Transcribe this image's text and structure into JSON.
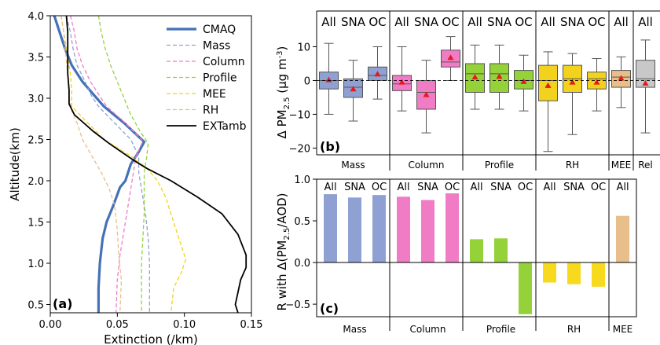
{
  "colors": {
    "CMAQ": "#4472b8",
    "Mass": "#8ea1d2",
    "Column": "#f07cc6",
    "Profile": "#95d23a",
    "MEE": "#f2d21c",
    "RH": "#e8be8a",
    "EXTamb": "#000000",
    "box_Mass": "#8ea1d2",
    "box_Column": "#f07cc6",
    "box_Profile": "#95d23a",
    "box_RH": "#f2d21c",
    "box_MEE": "#e8be8a",
    "box_Rel": "#c8c8c8",
    "bar_Mass": "#8ea1d2",
    "bar_Column": "#f07cc6",
    "bar_Profile": "#95d23a",
    "bar_RH": "#f7d91e",
    "bar_MEE": "#e8be8a",
    "mean_marker": "#e8191a"
  },
  "chart_data": [
    {
      "id": "a",
      "type": "line",
      "panel_label": "(a)",
      "xlabel": "Extinction (/km)",
      "ylabel": "Altitude(km)",
      "xlim": [
        0.0,
        0.15
      ],
      "ylim": [
        0.4,
        4.0
      ],
      "xticks": [
        "0.00",
        "0.05",
        "0.10",
        "0.15"
      ],
      "yticks": [
        "0.5",
        "1.0",
        "1.5",
        "2.0",
        "2.5",
        "3.0",
        "3.5",
        "4.0"
      ],
      "legend_position": "top-right",
      "series": [
        {
          "name": "CMAQ",
          "style": "solid-thick",
          "points": [
            [
              0.003,
              4.0
            ],
            [
              0.007,
              3.8
            ],
            [
              0.011,
              3.6
            ],
            [
              0.016,
              3.4
            ],
            [
              0.024,
              3.2
            ],
            [
              0.032,
              3.05
            ],
            [
              0.04,
              2.9
            ],
            [
              0.055,
              2.7
            ],
            [
              0.07,
              2.47
            ],
            [
              0.066,
              2.35
            ],
            [
              0.06,
              2.2
            ],
            [
              0.056,
              2.0
            ],
            [
              0.052,
              1.92
            ],
            [
              0.047,
              1.7
            ],
            [
              0.042,
              1.5
            ],
            [
              0.039,
              1.3
            ],
            [
              0.037,
              1.0
            ],
            [
              0.036,
              0.7
            ],
            [
              0.036,
              0.4
            ]
          ]
        },
        {
          "name": "Mass",
          "style": "dashed",
          "points": [
            [
              0.012,
              4.0
            ],
            [
              0.015,
              3.8
            ],
            [
              0.017,
              3.6
            ],
            [
              0.02,
              3.4
            ],
            [
              0.026,
              3.2
            ],
            [
              0.03,
              3.05
            ],
            [
              0.036,
              2.9
            ],
            [
              0.048,
              2.7
            ],
            [
              0.06,
              2.5
            ],
            [
              0.066,
              2.3
            ],
            [
              0.066,
              2.1
            ],
            [
              0.068,
              1.9
            ],
            [
              0.071,
              1.6
            ],
            [
              0.073,
              1.3
            ],
            [
              0.074,
              1.0
            ],
            [
              0.074,
              0.7
            ],
            [
              0.074,
              0.4
            ]
          ]
        },
        {
          "name": "Column",
          "style": "dashed",
          "points": [
            [
              0.015,
              4.0
            ],
            [
              0.018,
              3.8
            ],
            [
              0.02,
              3.6
            ],
            [
              0.024,
              3.4
            ],
            [
              0.03,
              3.2
            ],
            [
              0.036,
              3.05
            ],
            [
              0.042,
              2.9
            ],
            [
              0.056,
              2.7
            ],
            [
              0.069,
              2.48
            ],
            [
              0.064,
              2.3
            ],
            [
              0.062,
              2.1
            ],
            [
              0.06,
              1.9
            ],
            [
              0.058,
              1.7
            ],
            [
              0.055,
              1.4
            ],
            [
              0.052,
              1.1
            ],
            [
              0.05,
              0.8
            ],
            [
              0.049,
              0.4
            ]
          ]
        },
        {
          "name": "Profile",
          "style": "dashed",
          "points": [
            [
              0.036,
              4.0
            ],
            [
              0.038,
              3.8
            ],
            [
              0.041,
              3.6
            ],
            [
              0.045,
              3.4
            ],
            [
              0.05,
              3.2
            ],
            [
              0.055,
              3.0
            ],
            [
              0.06,
              2.8
            ],
            [
              0.067,
              2.6
            ],
            [
              0.073,
              2.45
            ],
            [
              0.072,
              2.3
            ],
            [
              0.07,
              2.1
            ],
            [
              0.07,
              1.9
            ],
            [
              0.07,
              1.6
            ],
            [
              0.069,
              1.3
            ],
            [
              0.068,
              1.0
            ],
            [
              0.068,
              0.7
            ],
            [
              0.068,
              0.4
            ]
          ]
        },
        {
          "name": "MEE",
          "style": "dashed",
          "points": [
            [
              0.008,
              4.0
            ],
            [
              0.01,
              3.8
            ],
            [
              0.012,
              3.6
            ],
            [
              0.015,
              3.3
            ],
            [
              0.016,
              3.1
            ],
            [
              0.016,
              2.9
            ],
            [
              0.028,
              2.7
            ],
            [
              0.04,
              2.5
            ],
            [
              0.06,
              2.3
            ],
            [
              0.072,
              2.15
            ],
            [
              0.08,
              2.0
            ],
            [
              0.086,
              1.8
            ],
            [
              0.09,
              1.6
            ],
            [
              0.096,
              1.3
            ],
            [
              0.101,
              1.05
            ],
            [
              0.098,
              0.9
            ],
            [
              0.092,
              0.7
            ],
            [
              0.09,
              0.4
            ]
          ]
        },
        {
          "name": "RH",
          "style": "dashed",
          "points": [
            [
              0.008,
              4.0
            ],
            [
              0.01,
              3.8
            ],
            [
              0.011,
              3.6
            ],
            [
              0.013,
              3.3
            ],
            [
              0.014,
              3.0
            ],
            [
              0.016,
              2.85
            ],
            [
              0.02,
              2.7
            ],
            [
              0.024,
              2.5
            ],
            [
              0.031,
              2.3
            ],
            [
              0.038,
              2.1
            ],
            [
              0.044,
              1.9
            ],
            [
              0.048,
              1.7
            ],
            [
              0.05,
              1.4
            ],
            [
              0.051,
              1.1
            ],
            [
              0.053,
              0.8
            ],
            [
              0.052,
              0.4
            ]
          ]
        },
        {
          "name": "EXTamb",
          "style": "solid",
          "points": [
            [
              0.012,
              4.0
            ],
            [
              0.013,
              3.8
            ],
            [
              0.013,
              3.6
            ],
            [
              0.013,
              3.3
            ],
            [
              0.014,
              3.1
            ],
            [
              0.014,
              2.93
            ],
            [
              0.018,
              2.8
            ],
            [
              0.032,
              2.6
            ],
            [
              0.044,
              2.45
            ],
            [
              0.062,
              2.25
            ],
            [
              0.072,
              2.15
            ],
            [
              0.09,
              2.0
            ],
            [
              0.11,
              1.8
            ],
            [
              0.128,
              1.6
            ],
            [
              0.14,
              1.35
            ],
            [
              0.146,
              1.1
            ],
            [
              0.146,
              0.95
            ],
            [
              0.142,
              0.8
            ],
            [
              0.14,
              0.65
            ],
            [
              0.138,
              0.5
            ],
            [
              0.14,
              0.4
            ]
          ]
        }
      ]
    },
    {
      "id": "b",
      "type": "box",
      "panel_label": "(b)",
      "ylabel_main": "Δ PM",
      "ylabel_sub": "2.5",
      "ylabel_tail": " (μg m",
      "ylabel_sup": "-3",
      "ylabel_end": ")",
      "ylim": [
        -22,
        15
      ],
      "yticks": [
        -20,
        -10,
        0,
        10
      ],
      "groups": [
        "Mass",
        "Column",
        "Profile",
        "RH",
        "MEE",
        "Rel"
      ],
      "boxes": [
        {
          "group": "Mass",
          "label": "All",
          "q1": -2.5,
          "median": 0.0,
          "q3": 2.5,
          "wlo": -10,
          "whi": 11,
          "mean": 0.2
        },
        {
          "group": "Mass",
          "label": "SNA",
          "q1": -5,
          "median": -2,
          "q3": 0.5,
          "wlo": -12,
          "whi": 6,
          "mean": -2.5
        },
        {
          "group": "Mass",
          "label": "OC",
          "q1": 0,
          "median": 1.5,
          "q3": 4,
          "wlo": -5.5,
          "whi": 10,
          "mean": 1.9
        },
        {
          "group": "Column",
          "label": "All",
          "q1": -3,
          "median": -1,
          "q3": 1.5,
          "wlo": -9,
          "whi": 10,
          "mean": -0.5
        },
        {
          "group": "Column",
          "label": "SNA",
          "q1": -8.5,
          "median": -3.5,
          "q3": 0,
          "wlo": -15.5,
          "whi": 6,
          "mean": -4.2
        },
        {
          "group": "Column",
          "label": "OC",
          "q1": 4,
          "median": 5.5,
          "q3": 9,
          "wlo": 0,
          "whi": 13,
          "mean": 6.8
        },
        {
          "group": "Profile",
          "label": "All",
          "q1": -3.5,
          "median": 2,
          "q3": 5,
          "wlo": -8.5,
          "whi": 10.5,
          "mean": 1.0
        },
        {
          "group": "Profile",
          "label": "SNA",
          "q1": -3.5,
          "median": 2,
          "q3": 5,
          "wlo": -8.5,
          "whi": 10.5,
          "mean": 1.2
        },
        {
          "group": "Profile",
          "label": "OC",
          "q1": -2.5,
          "median": 0,
          "q3": 3,
          "wlo": -9,
          "whi": 7.5,
          "mean": -0.3
        },
        {
          "group": "RH",
          "label": "All",
          "q1": -6,
          "median": 0,
          "q3": 4.5,
          "wlo": -21,
          "whi": 8.5,
          "mean": -1.5
        },
        {
          "group": "RH",
          "label": "SNA",
          "q1": -3.5,
          "median": 0.5,
          "q3": 4.5,
          "wlo": -16,
          "whi": 8,
          "mean": -0.5
        },
        {
          "group": "RH",
          "label": "OC",
          "q1": -2.5,
          "median": 0.5,
          "q3": 2.5,
          "wlo": -9,
          "whi": 6.5,
          "mean": -0.5
        },
        {
          "group": "MEE",
          "label": "All",
          "q1": -2,
          "median": 1,
          "q3": 3,
          "wlo": -8,
          "whi": 7,
          "mean": 0.7
        },
        {
          "group": "Rel",
          "label": "All",
          "q1": -2,
          "median": 0.5,
          "q3": 6,
          "wlo": -15.5,
          "whi": 12,
          "mean": -0.8
        }
      ]
    },
    {
      "id": "c",
      "type": "bar",
      "panel_label": "(c)",
      "ylabel": "R with Δ(PM",
      "ylabel_sub": "2.5",
      "ylabel_end": "/AOD)",
      "ylim": [
        -0.65,
        1.0
      ],
      "yticks": [
        "−0.5",
        "0.0",
        "0.5",
        "1.0"
      ],
      "ytick_values": [
        -0.5,
        0.0,
        0.5,
        1.0
      ],
      "groups": [
        "Mass",
        "Column",
        "Profile",
        "RH",
        "MEE"
      ],
      "bars": [
        {
          "group": "Mass",
          "label": "All",
          "value": 0.82
        },
        {
          "group": "Mass",
          "label": "SNA",
          "value": 0.78
        },
        {
          "group": "Mass",
          "label": "OC",
          "value": 0.81
        },
        {
          "group": "Column",
          "label": "All",
          "value": 0.79
        },
        {
          "group": "Column",
          "label": "SNA",
          "value": 0.75
        },
        {
          "group": "Column",
          "label": "OC",
          "value": 0.83
        },
        {
          "group": "Profile",
          "label": "All",
          "value": 0.28
        },
        {
          "group": "Profile",
          "label": "SNA",
          "value": 0.29
        },
        {
          "group": "Profile",
          "label": "OC",
          "value": -0.62
        },
        {
          "group": "RH",
          "label": "All",
          "value": -0.24
        },
        {
          "group": "RH",
          "label": "SNA",
          "value": -0.26
        },
        {
          "group": "RH",
          "label": "OC",
          "value": -0.29
        },
        {
          "group": "MEE",
          "label": "All",
          "value": 0.56
        }
      ]
    }
  ]
}
